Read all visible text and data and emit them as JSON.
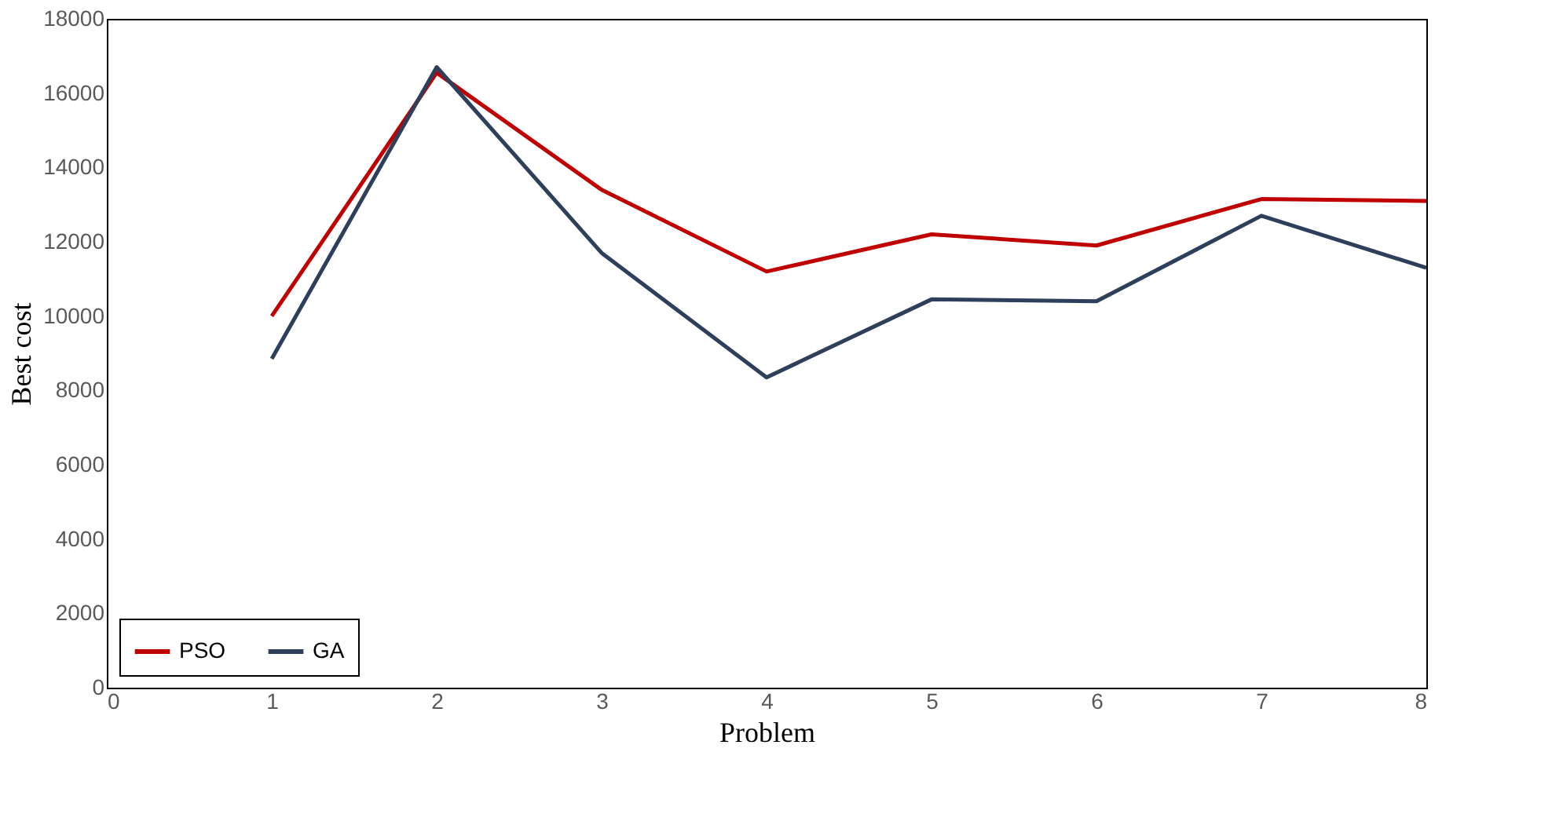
{
  "chart_data": {
    "type": "line",
    "xlabel": "Problem",
    "ylabel": "Best cost",
    "x": [
      1,
      2,
      3,
      4,
      5,
      6,
      7,
      8
    ],
    "series": [
      {
        "name": "PSO",
        "color": "#c00000",
        "values": [
          10000,
          16550,
          13400,
          11200,
          12200,
          11900,
          13150,
          13100
        ]
      },
      {
        "name": "GA",
        "color": "#2e3f5c",
        "values": [
          8850,
          16700,
          11700,
          8350,
          10450,
          10400,
          12700,
          11300
        ]
      }
    ],
    "xlim": [
      0,
      8
    ],
    "xticks": [
      0,
      1,
      2,
      3,
      4,
      5,
      6,
      7,
      8
    ],
    "ylim": [
      0,
      18000
    ],
    "yticks": [
      0,
      2000,
      4000,
      6000,
      8000,
      10000,
      12000,
      14000,
      16000,
      18000
    ],
    "grid": false,
    "legend": "bottom left",
    "marker": "none",
    "line_style": "solid"
  }
}
